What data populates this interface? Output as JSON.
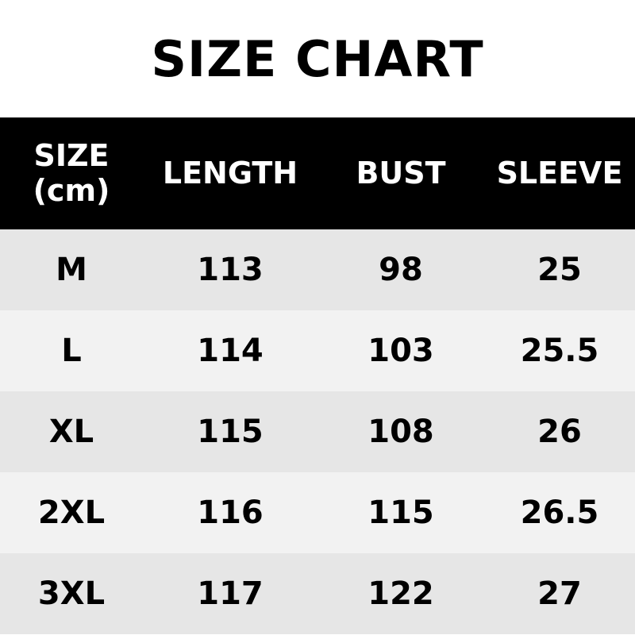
{
  "title": "SIZE CHART",
  "headers": [
    "SIZE",
    "(cm)",
    "LENGTH",
    "BUST",
    "SLEEVE"
  ],
  "rows": [
    [
      "M",
      "113",
      "98",
      "25"
    ],
    [
      "L",
      "114",
      "103",
      "25.5"
    ],
    [
      "XL",
      "115",
      "108",
      "26"
    ],
    [
      "2XL",
      "116",
      "115",
      "26.5"
    ],
    [
      "3XL",
      "117",
      "122",
      "27"
    ]
  ],
  "colors": {
    "header_bg": "#000000",
    "row_dark": "#e6e6e6",
    "row_light": "#f2f2f2"
  }
}
